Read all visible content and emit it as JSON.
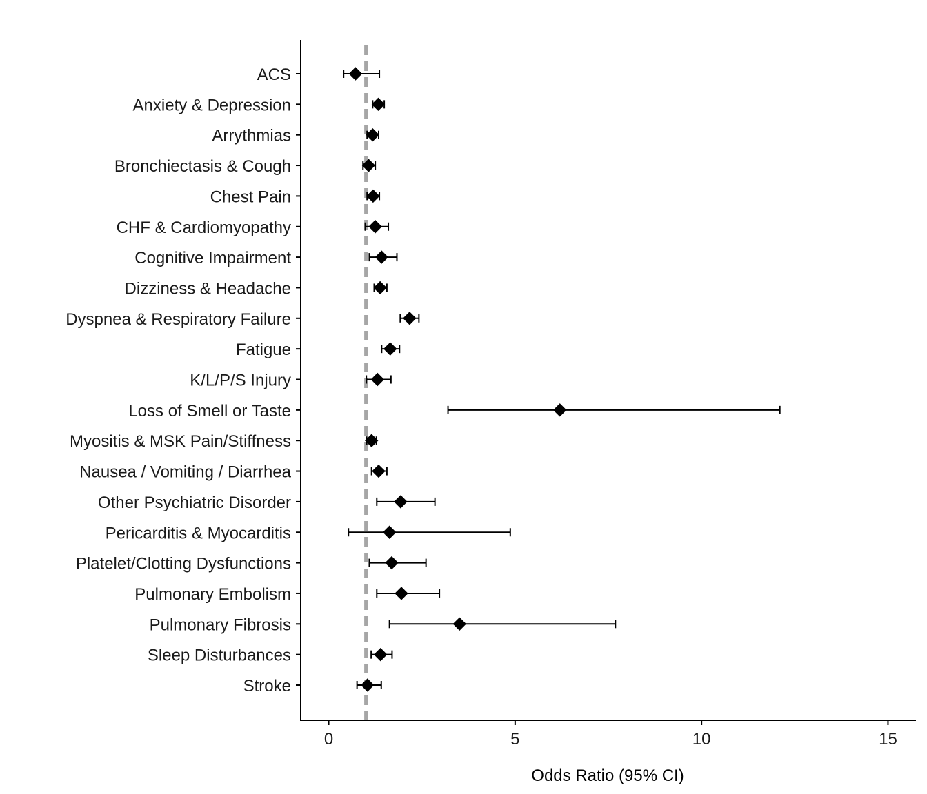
{
  "chart_data": {
    "type": "forest",
    "xlabel": "Odds Ratio (95% CI)",
    "xlim": [
      -0.75,
      15.75
    ],
    "x_ticks": [
      0,
      5,
      10,
      15
    ],
    "x_tick_labels": [
      "0",
      "5",
      "10",
      "15"
    ],
    "reference_line": {
      "x": 1,
      "style": "dashed",
      "color": "#a6a6a6"
    },
    "grid": false,
    "legend": "none",
    "marker": "diamond",
    "marker_color": "#000000",
    "categories": [
      "ACS",
      "Anxiety & Depression",
      "Arrythmias",
      "Bronchiectasis & Cough",
      "Chest Pain",
      "CHF & Cardiomyopathy",
      "Cognitive Impairment",
      "Dizziness & Headache",
      "Dyspnea & Respiratory Failure",
      "Fatigue",
      "K/L/P/S Injury",
      "Loss of Smell or Taste",
      "Myositis & MSK Pain/Stiffness",
      "Nausea / Vomiting / Diarrhea",
      "Other Psychiatric Disorder",
      "Pericarditis & Myocarditis",
      "Platelet/Clotting Dysfunctions",
      "Pulmonary Embolism",
      "Pulmonary Fibrosis",
      "Sleep Disturbances",
      "Stroke"
    ],
    "estimates": [
      0.72,
      1.33,
      1.18,
      1.07,
      1.19,
      1.25,
      1.42,
      1.38,
      2.17,
      1.65,
      1.31,
      6.2,
      1.15,
      1.34,
      1.93,
      1.63,
      1.69,
      1.95,
      3.51,
      1.39,
      1.04
    ],
    "ci_lower": [
      0.4,
      1.18,
      1.03,
      0.92,
      1.03,
      0.98,
      1.09,
      1.22,
      1.92,
      1.42,
      1.01,
      3.2,
      1.02,
      1.15,
      1.29,
      0.53,
      1.09,
      1.29,
      1.63,
      1.14,
      0.76
    ],
    "ci_upper": [
      1.36,
      1.49,
      1.34,
      1.25,
      1.36,
      1.6,
      1.83,
      1.56,
      2.42,
      1.9,
      1.67,
      12.1,
      1.28,
      1.56,
      2.85,
      4.87,
      2.61,
      2.97,
      7.69,
      1.7,
      1.41
    ]
  }
}
